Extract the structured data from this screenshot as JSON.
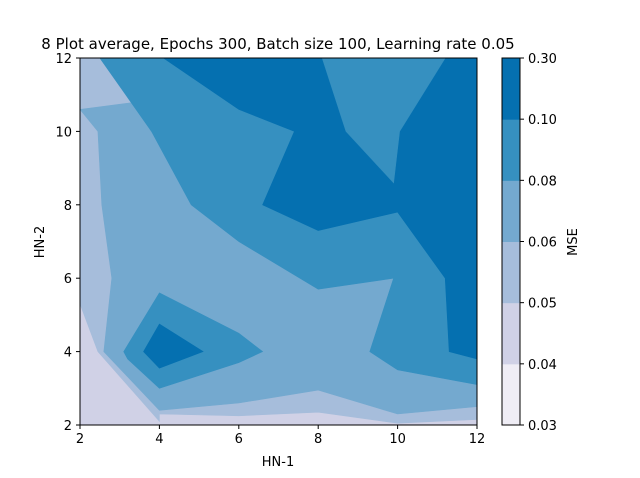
{
  "chart_data": {
    "type": "contour",
    "title": "8 Plot average, Epochs 300, Batch size 100, Learning rate 0.05",
    "xlabel": "HN-1",
    "ylabel": "HN-2",
    "xlim": [
      2,
      12
    ],
    "ylim": [
      2,
      12
    ],
    "x_ticks": [
      "2",
      "4",
      "6",
      "8",
      "10",
      "12"
    ],
    "y_ticks": [
      "2",
      "4",
      "6",
      "8",
      "10",
      "12"
    ],
    "colorbar": {
      "label": "MSE",
      "levels": [
        0.03,
        0.04,
        0.05,
        0.06,
        0.08,
        0.1,
        0.3
      ],
      "tick_labels": [
        "0.03",
        "0.04",
        "0.05",
        "0.06",
        "0.08",
        "0.10",
        "0.30"
      ],
      "colors": [
        "#efedf5",
        "#d0d1e6",
        "#a6bddb",
        "#74a9cf",
        "#3690c0",
        "#0570b0"
      ]
    },
    "regions": [
      {
        "band": 0,
        "points": [
          [
            2,
            2
          ],
          [
            12,
            2
          ],
          [
            12,
            12
          ],
          [
            2,
            12
          ]
        ]
      },
      {
        "band": 1,
        "points": [
          [
            2,
            5.3
          ],
          [
            2.45,
            4
          ],
          [
            4,
            2.1
          ],
          [
            4,
            2.3
          ],
          [
            6,
            2.25
          ],
          [
            8,
            2.35
          ],
          [
            10,
            2.05
          ],
          [
            12,
            2.15
          ],
          [
            12,
            2
          ],
          [
            2,
            2
          ]
        ]
      },
      {
        "band": 2,
        "points": [
          [
            2,
            12
          ],
          [
            2,
            5.3
          ],
          [
            2.45,
            4
          ],
          [
            4,
            2.1
          ],
          [
            4,
            2.3
          ],
          [
            6,
            2.25
          ],
          [
            8,
            2.35
          ],
          [
            10,
            2.05
          ],
          [
            12,
            2.15
          ],
          [
            12,
            12
          ]
        ]
      },
      {
        "band": 3,
        "points": [
          [
            2,
            10.6
          ],
          [
            2.45,
            10
          ],
          [
            2.55,
            8
          ],
          [
            2.8,
            6
          ],
          [
            2.6,
            4
          ],
          [
            4,
            2.4
          ],
          [
            6,
            2.6
          ],
          [
            8,
            2.95
          ],
          [
            10,
            2.3
          ],
          [
            12,
            2.5
          ],
          [
            12,
            12
          ]
        ]
      },
      {
        "band": 4,
        "points": [
          [
            2,
            12
          ],
          [
            12,
            12
          ],
          [
            12,
            3.1
          ],
          [
            10,
            3.5
          ],
          [
            9.3,
            4
          ],
          [
            9.9,
            6
          ],
          [
            8,
            5.7
          ],
          [
            6,
            7
          ],
          [
            4.8,
            8
          ],
          [
            3.8,
            10
          ],
          [
            2.5,
            12
          ]
        ]
      },
      {
        "band": 4,
        "points": [
          [
            3.1,
            4
          ],
          [
            4,
            5.6
          ],
          [
            6,
            4.5
          ],
          [
            6.6,
            4
          ],
          [
            6,
            3.7
          ],
          [
            4,
            3
          ],
          [
            3.2,
            3.8
          ]
        ]
      },
      {
        "band": 5,
        "points": [
          [
            4.1,
            12
          ],
          [
            12,
            12
          ],
          [
            12,
            3.8
          ],
          [
            11.3,
            4
          ],
          [
            11.2,
            6
          ],
          [
            10,
            7.8
          ],
          [
            8,
            7.3
          ],
          [
            6.6,
            8
          ],
          [
            7.4,
            10
          ],
          [
            6,
            10.6
          ]
        ]
      },
      {
        "band": 5,
        "points": [
          [
            3.6,
            4
          ],
          [
            4,
            4.75
          ],
          [
            5.1,
            4
          ],
          [
            4,
            3.55
          ]
        ]
      },
      {
        "band": 4,
        "points": [
          [
            8.1,
            12
          ],
          [
            11.2,
            12
          ],
          [
            10.05,
            10
          ],
          [
            9.9,
            8.6
          ],
          [
            8.7,
            10
          ]
        ]
      }
    ]
  }
}
